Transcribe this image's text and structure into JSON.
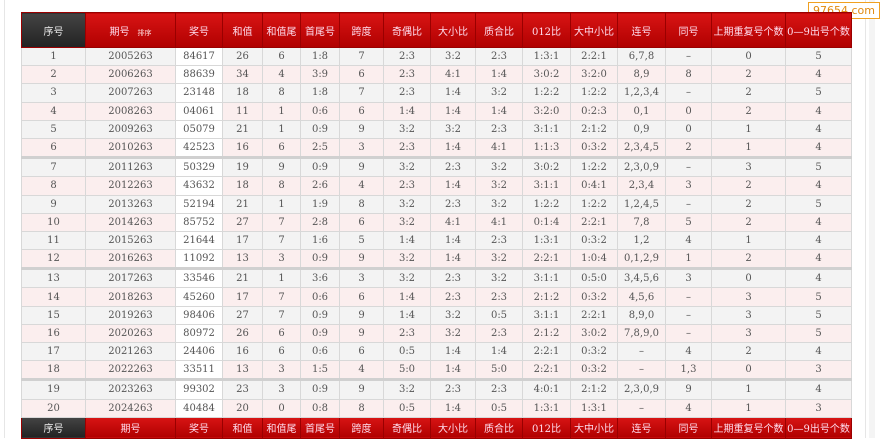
{
  "watermark": "97654.com",
  "headers": [
    "序号",
    "期号",
    "奖号",
    "和值",
    "和值尾",
    "首尾号",
    "跨度",
    "奇偶比",
    "大小比",
    "质合比",
    "012比",
    "大中小比",
    "连号",
    "同号",
    "上期重复号个数",
    "0—9出号个数"
  ],
  "sort_label": "排序",
  "rows": [
    [
      "1",
      "2005263",
      "84617",
      "26",
      "6",
      "1:8",
      "7",
      "2:3",
      "3:2",
      "2:3",
      "1:3:1",
      "2:2:1",
      "6,7,8",
      "–",
      "0",
      "5"
    ],
    [
      "2",
      "2006263",
      "88639",
      "34",
      "4",
      "3:9",
      "6",
      "2:3",
      "4:1",
      "1:4",
      "3:0:2",
      "3:2:0",
      "8,9",
      "8",
      "2",
      "4"
    ],
    [
      "3",
      "2007263",
      "23148",
      "18",
      "8",
      "1:8",
      "7",
      "2:3",
      "1:4",
      "3:2",
      "1:2:2",
      "1:2:2",
      "1,2,3,4",
      "–",
      "2",
      "5"
    ],
    [
      "4",
      "2008263",
      "04061",
      "11",
      "1",
      "0:6",
      "6",
      "1:4",
      "1:4",
      "1:4",
      "3:2:0",
      "0:2:3",
      "0,1",
      "0",
      "2",
      "4"
    ],
    [
      "5",
      "2009263",
      "05079",
      "21",
      "1",
      "0:9",
      "9",
      "3:2",
      "3:2",
      "2:3",
      "3:1:1",
      "2:1:2",
      "0,9",
      "0",
      "1",
      "4"
    ],
    [
      "6",
      "2010263",
      "42523",
      "16",
      "6",
      "2:5",
      "3",
      "2:3",
      "1:4",
      "4:1",
      "1:1:3",
      "0:3:2",
      "2,3,4,5",
      "2",
      "1",
      "4"
    ],
    [
      "7",
      "2011263",
      "50329",
      "19",
      "9",
      "0:9",
      "9",
      "3:2",
      "2:3",
      "3:2",
      "3:0:2",
      "1:2:2",
      "2,3,0,9",
      "–",
      "3",
      "5"
    ],
    [
      "8",
      "2012263",
      "43632",
      "18",
      "8",
      "2:6",
      "4",
      "2:3",
      "1:4",
      "3:2",
      "3:1:1",
      "0:4:1",
      "2,3,4",
      "3",
      "2",
      "4"
    ],
    [
      "9",
      "2013263",
      "52194",
      "21",
      "1",
      "1:9",
      "8",
      "3:2",
      "2:3",
      "3:2",
      "1:2:2",
      "1:2:2",
      "1,2,4,5",
      "–",
      "2",
      "5"
    ],
    [
      "10",
      "2014263",
      "85752",
      "27",
      "7",
      "2:8",
      "6",
      "3:2",
      "4:1",
      "4:1",
      "0:1:4",
      "2:2:1",
      "7,8",
      "5",
      "2",
      "4"
    ],
    [
      "11",
      "2015263",
      "21644",
      "17",
      "7",
      "1:6",
      "5",
      "1:4",
      "1:4",
      "2:3",
      "1:3:1",
      "0:3:2",
      "1,2",
      "4",
      "1",
      "4"
    ],
    [
      "12",
      "2016263",
      "11092",
      "13",
      "3",
      "0:9",
      "9",
      "3:2",
      "1:4",
      "3:2",
      "2:2:1",
      "1:0:4",
      "0,1,2,9",
      "1",
      "2",
      "4"
    ],
    [
      "13",
      "2017263",
      "33546",
      "21",
      "1",
      "3:6",
      "3",
      "3:2",
      "2:3",
      "3:2",
      "3:1:1",
      "0:5:0",
      "3,4,5,6",
      "3",
      "0",
      "4"
    ],
    [
      "14",
      "2018263",
      "45260",
      "17",
      "7",
      "0:6",
      "6",
      "1:4",
      "2:3",
      "2:3",
      "2:1:2",
      "0:3:2",
      "4,5,6",
      "–",
      "3",
      "5"
    ],
    [
      "15",
      "2019263",
      "98406",
      "27",
      "7",
      "0:9",
      "9",
      "1:4",
      "3:2",
      "0:5",
      "3:1:1",
      "2:2:1",
      "8,9,0",
      "–",
      "3",
      "5"
    ],
    [
      "16",
      "2020263",
      "80972",
      "26",
      "6",
      "0:9",
      "9",
      "2:3",
      "3:2",
      "2:3",
      "2:1:2",
      "3:0:2",
      "7,8,9,0",
      "–",
      "3",
      "5"
    ],
    [
      "17",
      "2021263",
      "24406",
      "16",
      "6",
      "0:6",
      "6",
      "0:5",
      "1:4",
      "1:4",
      "2:2:1",
      "0:3:2",
      "–",
      "4",
      "2",
      "4"
    ],
    [
      "18",
      "2022263",
      "33511",
      "13",
      "3",
      "1:5",
      "4",
      "5:0",
      "1:4",
      "5:0",
      "2:2:1",
      "0:3:2",
      "–",
      "1,3",
      "0",
      "3"
    ],
    [
      "19",
      "2023263",
      "99302",
      "23",
      "3",
      "0:9",
      "9",
      "3:2",
      "2:3",
      "2:3",
      "4:0:1",
      "2:1:2",
      "2,3,0,9",
      "9",
      "1",
      "4"
    ],
    [
      "20",
      "2024263",
      "40484",
      "20",
      "0",
      "0:8",
      "8",
      "0:5",
      "1:4",
      "0:5",
      "1:3:1",
      "1:3:1",
      "–",
      "4",
      "1",
      "3"
    ]
  ]
}
